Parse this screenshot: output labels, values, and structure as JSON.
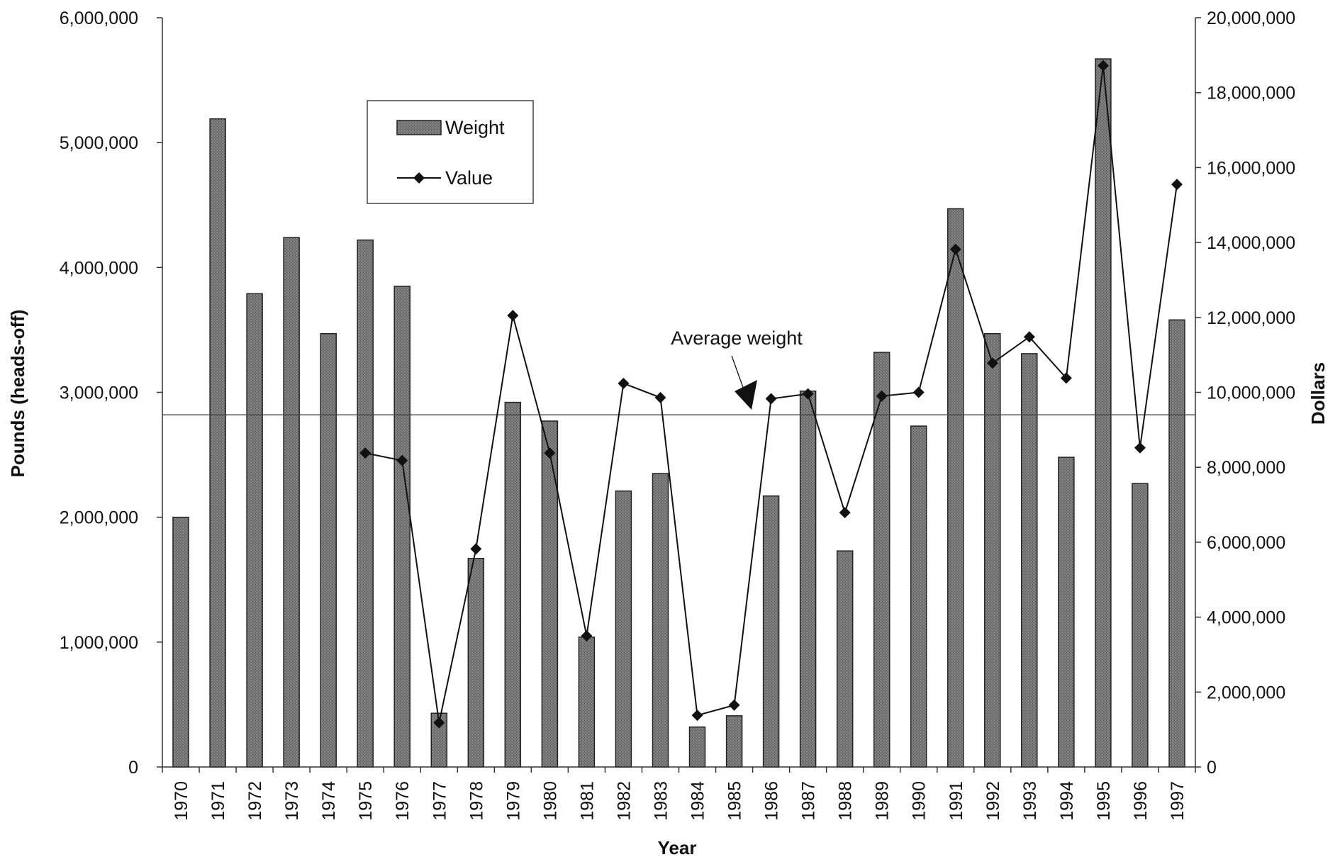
{
  "chart_data": {
    "type": "bar",
    "xlabel": "Year",
    "ylabel": "Pounds (heads-off)",
    "y2label": "Dollars",
    "categories": [
      "1970",
      "1971",
      "1972",
      "1973",
      "1974",
      "1975",
      "1976",
      "1977",
      "1978",
      "1979",
      "1980",
      "1981",
      "1982",
      "1983",
      "1984",
      "1985",
      "1986",
      "1987",
      "1988",
      "1989",
      "1990",
      "1991",
      "1992",
      "1993",
      "1994",
      "1995",
      "1996",
      "1997"
    ],
    "series": [
      {
        "name": "Weight",
        "type": "bar",
        "axis": "left",
        "values": [
          2000000,
          5190000,
          3790000,
          4240000,
          3470000,
          4220000,
          3850000,
          430000,
          1670000,
          2920000,
          2770000,
          1040000,
          2210000,
          2350000,
          320000,
          410000,
          2170000,
          3010000,
          1730000,
          3320000,
          2730000,
          4470000,
          3470000,
          3310000,
          2480000,
          5670000,
          2270000,
          3580000
        ]
      },
      {
        "name": "Value",
        "type": "line",
        "axis": "right",
        "values": [
          null,
          null,
          null,
          null,
          null,
          8380000,
          8180000,
          1180000,
          5820000,
          12050000,
          8380000,
          3500000,
          10240000,
          9860000,
          1380000,
          1650000,
          9830000,
          9960000,
          6790000,
          9900000,
          10000000,
          13820000,
          10780000,
          11480000,
          10380000,
          18720000,
          8520000,
          15550000
        ]
      }
    ],
    "ylim": [
      0,
      6000000
    ],
    "y2lim": [
      0,
      20000000
    ],
    "y_ticks": [
      "0",
      "1,000,000",
      "2,000,000",
      "3,000,000",
      "4,000,000",
      "5,000,000",
      "6,000,000"
    ],
    "y2_ticks": [
      "0",
      "2,000,000",
      "4,000,000",
      "6,000,000",
      "8,000,000",
      "10,000,000",
      "12,000,000",
      "14,000,000",
      "16,000,000",
      "18,000,000",
      "20,000,000"
    ],
    "reference_line": {
      "label": "Average weight",
      "value": 2820000
    },
    "legend": {
      "placement": "top-left",
      "entries": [
        "Weight",
        "Value"
      ]
    },
    "grid": false,
    "colors": {
      "bar": "#6e6e6e",
      "bar_edge": "#222222",
      "line": "#111111",
      "axis": "#333333"
    }
  }
}
